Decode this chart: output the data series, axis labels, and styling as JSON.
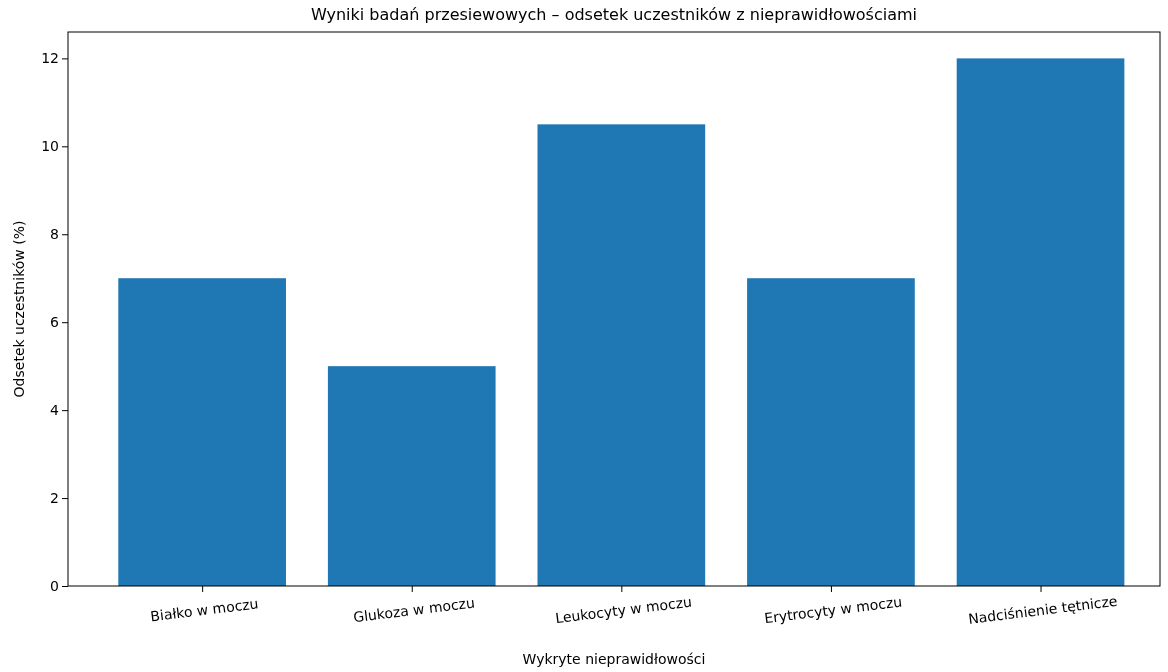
{
  "chart_data": {
    "type": "bar",
    "title": "Wyniki badań przesiewowych – odsetek uczestników z nieprawidłowościami",
    "xlabel": "Wykryte nieprawidłowości",
    "ylabel": "Odsetek uczestników (%)",
    "categories": [
      "Białko w moczu",
      "Glukoza w moczu",
      "Leukocyty w moczu",
      "Erytrocyty w moczu",
      "Nadciśnienie tętnicze"
    ],
    "values": [
      7,
      5,
      10.5,
      7,
      12
    ],
    "color": "#1f77b4",
    "ylim": [
      0,
      12.6
    ],
    "yticks": [
      0,
      2,
      4,
      6,
      8,
      10,
      12
    ],
    "grid": false
  }
}
